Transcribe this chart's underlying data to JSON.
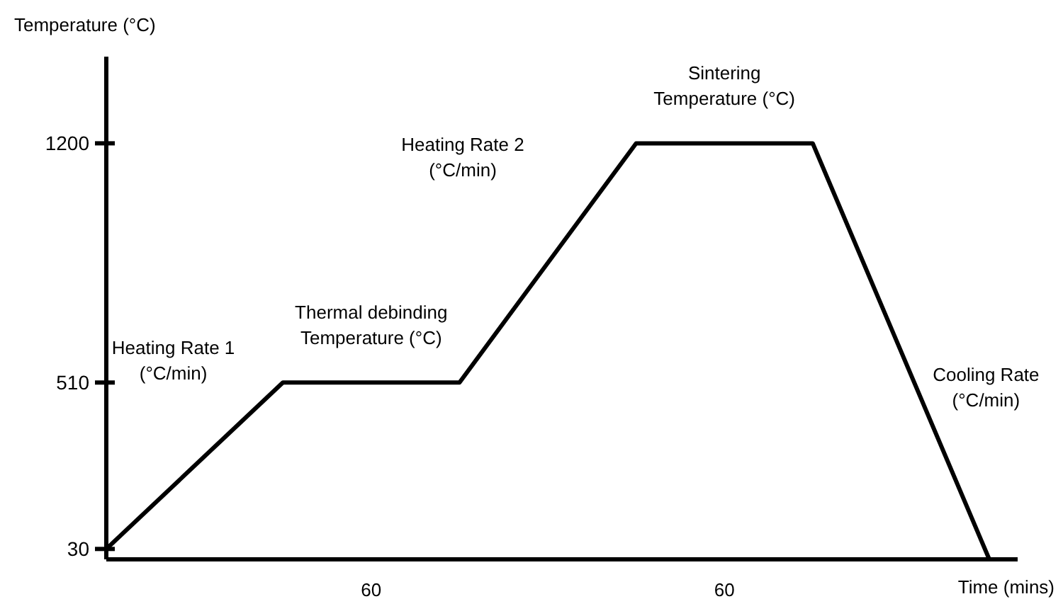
{
  "chart_data": {
    "type": "line",
    "ylabel": "Temperature (°C)",
    "xlabel": "Time (mins)",
    "categories": [
      null,
      null,
      null,
      null,
      null,
      null
    ],
    "series": [
      {
        "color": "#000000",
        "values": [
          30,
          510,
          510,
          1200,
          1200,
          0
        ]
      }
    ],
    "ylim": [
      0,
      1450
    ],
    "yticks": [
      30,
      510,
      1200
    ],
    "tick_labels": "y",
    "grid": false,
    "marker": "none",
    "line_style": "solid",
    "annotations": [
      "Heating Rate 1\n(°C/min)",
      "Thermal debinding\nTemperature (°C)",
      "Heating Rate 2\n(°C/min)",
      "Sintering\nTemperature (°C)",
      "Cooling Rate\n(°C/min)",
      "60",
      "60"
    ]
  }
}
